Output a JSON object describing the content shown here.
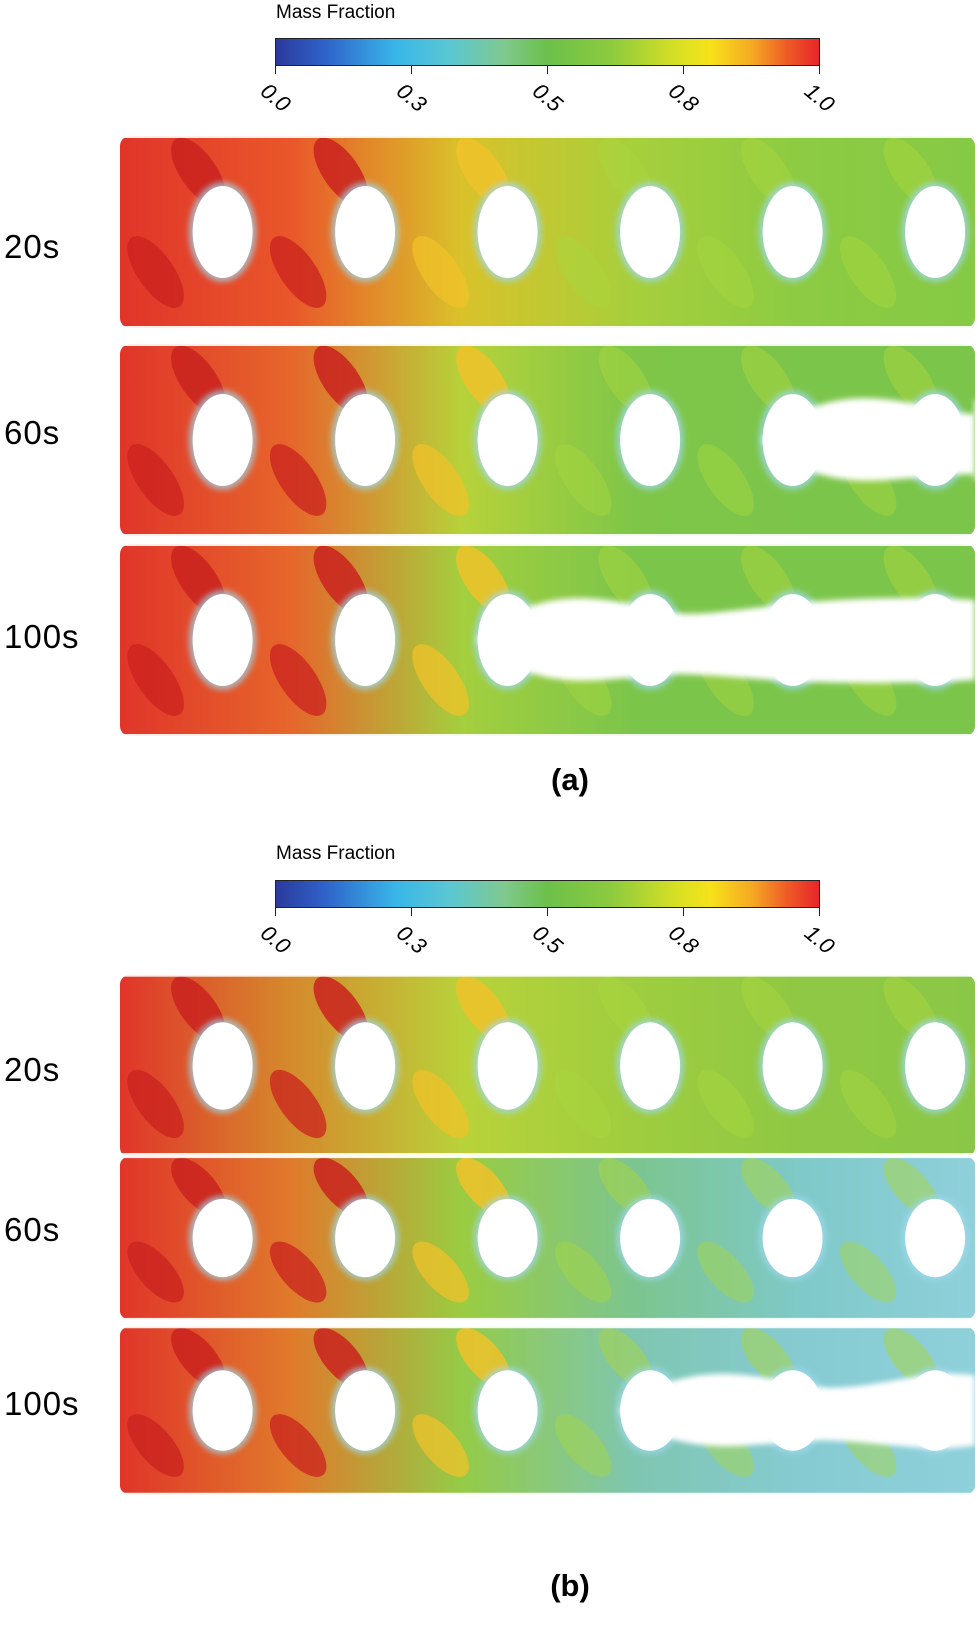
{
  "panels": [
    {
      "legend_title": "Mass Fraction",
      "ticks": [
        "0.0",
        "0.3",
        "0.5",
        "0.8",
        "1.0"
      ],
      "rows": [
        "20s",
        "60s",
        "100s"
      ],
      "caption": "(a)"
    },
    {
      "legend_title": "Mass Fraction",
      "ticks": [
        "0.0",
        "0.3",
        "0.5",
        "0.8",
        "1.0"
      ],
      "rows": [
        "20s",
        "60s",
        "100s"
      ],
      "caption": "(b)"
    }
  ]
}
